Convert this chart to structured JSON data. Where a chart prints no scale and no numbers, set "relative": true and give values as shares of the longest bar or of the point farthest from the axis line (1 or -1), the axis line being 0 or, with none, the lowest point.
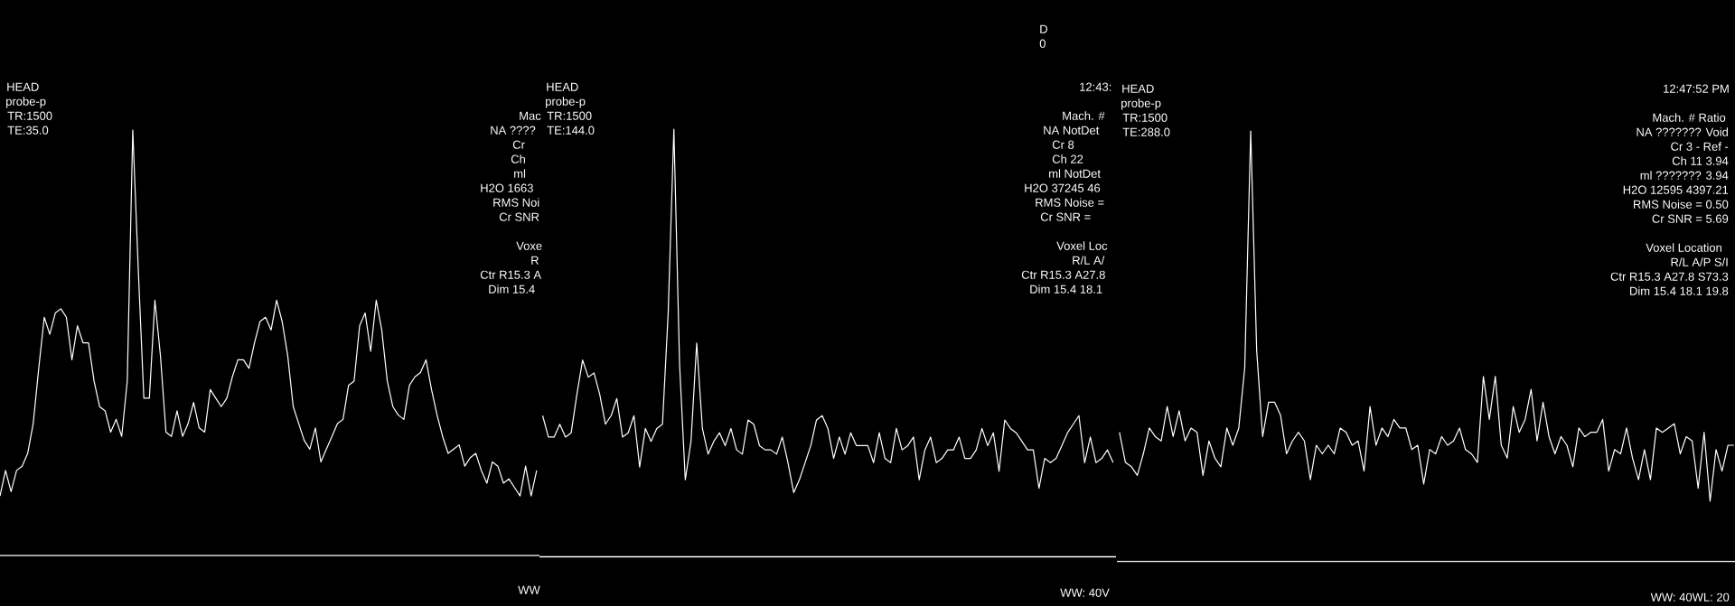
{
  "chart_data": [
    {
      "type": "line",
      "relative": true,
      "categories": [
        null,
        null,
        null,
        null,
        null,
        null,
        null,
        null,
        null,
        null,
        null,
        null,
        null,
        null,
        null,
        null,
        null,
        null,
        null,
        null,
        null,
        null,
        null,
        null,
        null,
        null,
        null,
        null,
        null,
        null,
        null,
        null,
        null,
        null,
        null,
        null,
        null,
        null,
        null,
        null,
        null,
        null,
        null,
        null,
        null,
        null,
        null,
        null,
        null,
        null,
        null,
        null,
        null,
        null,
        null,
        null,
        null,
        null,
        null,
        null,
        null,
        null,
        null,
        null,
        null,
        null,
        null,
        null,
        null,
        null,
        null,
        null,
        null,
        null,
        null,
        null,
        null,
        null,
        null,
        null,
        null,
        null,
        null,
        null,
        null,
        null,
        null,
        null,
        null,
        null,
        null,
        null,
        null,
        null,
        null,
        null,
        null,
        null
      ],
      "series": [
        {
          "color": "#ffffff",
          "values": [
            0.14,
            0.2,
            0.15,
            0.2,
            0.21,
            0.24,
            0.31,
            0.44,
            0.56,
            0.52,
            0.57,
            0.58,
            0.56,
            0.46,
            0.54,
            0.5,
            0.5,
            0.41,
            0.35,
            0.34,
            0.29,
            0.32,
            0.28,
            0.41,
            1.0,
            0.67,
            0.37,
            0.37,
            0.6,
            0.47,
            0.29,
            0.28,
            0.34,
            0.28,
            0.31,
            0.36,
            0.3,
            0.29,
            0.39,
            0.37,
            0.35,
            0.37,
            0.42,
            0.46,
            0.46,
            0.44,
            0.5,
            0.55,
            0.56,
            0.53,
            0.6,
            0.55,
            0.47,
            0.35,
            0.31,
            0.27,
            0.25,
            0.3,
            0.22,
            0.25,
            0.28,
            0.31,
            0.32,
            0.4,
            0.41,
            0.54,
            0.57,
            0.48,
            0.6,
            0.53,
            0.41,
            0.35,
            0.33,
            0.32,
            0.4,
            0.42,
            0.43,
            0.46,
            0.39,
            0.33,
            0.28,
            0.24,
            0.25,
            0.26,
            0.21,
            0.23,
            0.24,
            0.2,
            0.17,
            0.22,
            0.21,
            0.17,
            0.18,
            0.16,
            0.14,
            0.21,
            0.14,
            0.2
          ]
        }
      ],
      "annotations": [
        "HEAD",
        "probe-p",
        "TR:1500",
        "TE:35.0",
        "Mac",
        "NA ????",
        "Cr",
        "Ch",
        "ml",
        "H2O 1663",
        "RMS Noi",
        "Cr SNR",
        "Voxe",
        "R",
        "Ctr R15.3 A",
        "Dim 15.4",
        "WW"
      ]
    },
    {
      "type": "line",
      "relative": true,
      "categories": [
        null,
        null,
        null,
        null,
        null,
        null,
        null,
        null,
        null,
        null,
        null,
        null,
        null,
        null,
        null,
        null,
        null,
        null,
        null,
        null,
        null,
        null,
        null,
        null,
        null,
        null,
        null,
        null,
        null,
        null,
        null,
        null,
        null,
        null,
        null,
        null,
        null,
        null,
        null,
        null,
        null,
        null,
        null,
        null,
        null,
        null,
        null,
        null,
        null,
        null,
        null,
        null,
        null,
        null,
        null,
        null,
        null,
        null,
        null,
        null,
        null,
        null,
        null,
        null,
        null,
        null,
        null,
        null,
        null,
        null,
        null,
        null,
        null,
        null,
        null,
        null,
        null,
        null,
        null,
        null,
        null,
        null,
        null,
        null,
        null,
        null,
        null,
        null,
        null,
        null,
        null,
        null,
        null,
        null,
        null,
        null,
        null,
        null,
        null,
        null,
        null
      ],
      "series": [
        {
          "color": "#ffffff",
          "values": [
            0.33,
            0.28,
            0.28,
            0.31,
            0.28,
            0.29,
            0.38,
            0.46,
            0.42,
            0.43,
            0.38,
            0.31,
            0.33,
            0.37,
            0.28,
            0.29,
            0.33,
            0.21,
            0.3,
            0.27,
            0.3,
            0.31,
            0.57,
            1.0,
            0.45,
            0.18,
            0.27,
            0.5,
            0.3,
            0.24,
            0.27,
            0.29,
            0.26,
            0.3,
            0.25,
            0.24,
            0.32,
            0.31,
            0.26,
            0.25,
            0.25,
            0.24,
            0.28,
            0.22,
            0.15,
            0.18,
            0.22,
            0.26,
            0.32,
            0.33,
            0.3,
            0.23,
            0.28,
            0.24,
            0.29,
            0.26,
            0.26,
            0.26,
            0.22,
            0.29,
            0.23,
            0.22,
            0.3,
            0.25,
            0.26,
            0.28,
            0.18,
            0.25,
            0.28,
            0.22,
            0.23,
            0.25,
            0.25,
            0.28,
            0.23,
            0.23,
            0.25,
            0.3,
            0.26,
            0.29,
            0.2,
            0.32,
            0.3,
            0.29,
            0.27,
            0.25,
            0.25,
            0.16,
            0.23,
            0.22,
            0.23,
            0.26,
            0.29,
            0.31,
            0.33,
            0.22,
            0.28,
            0.22,
            0.23,
            0.25,
            0.22
          ]
        }
      ],
      "annotations": [
        "HEAD",
        "probe-p",
        "TR:1500",
        "TE:144.0",
        "D",
        "0",
        "12:43:",
        "Mach. #",
        "NA NotDet",
        "Cr 8",
        "Ch 22",
        "ml NotDet",
        "H2O 37245 46",
        "RMS Noise =",
        "Cr SNR =",
        "Voxel Loc",
        "R/L A/",
        "Ctr R15.3 A27.8",
        "Dim 15.4 18.1",
        "WW: 40V"
      ]
    },
    {
      "type": "line",
      "relative": true,
      "categories": [
        null,
        null,
        null,
        null,
        null,
        null,
        null,
        null,
        null,
        null,
        null,
        null,
        null,
        null,
        null,
        null,
        null,
        null,
        null,
        null,
        null,
        null,
        null,
        null,
        null,
        null,
        null,
        null,
        null,
        null,
        null,
        null,
        null,
        null,
        null,
        null,
        null,
        null,
        null,
        null,
        null,
        null,
        null,
        null,
        null,
        null,
        null,
        null,
        null,
        null,
        null,
        null,
        null,
        null,
        null,
        null,
        null,
        null,
        null,
        null,
        null,
        null,
        null,
        null,
        null,
        null,
        null,
        null,
        null,
        null,
        null,
        null,
        null,
        null,
        null,
        null,
        null,
        null,
        null,
        null,
        null,
        null,
        null,
        null,
        null,
        null,
        null,
        null,
        null,
        null,
        null,
        null,
        null,
        null,
        null,
        null,
        null,
        null,
        null,
        null,
        null,
        null,
        null,
        null
      ],
      "series": [
        {
          "color": "#ffffff",
          "values": [
            0.3,
            0.23,
            0.22,
            0.2,
            0.25,
            0.31,
            0.29,
            0.28,
            0.36,
            0.29,
            0.35,
            0.28,
            0.31,
            0.3,
            0.2,
            0.28,
            0.24,
            0.22,
            0.31,
            0.27,
            0.31,
            0.45,
            1.0,
            0.49,
            0.29,
            0.37,
            0.37,
            0.34,
            0.25,
            0.28,
            0.3,
            0.28,
            0.19,
            0.27,
            0.25,
            0.27,
            0.25,
            0.31,
            0.3,
            0.27,
            0.28,
            0.21,
            0.36,
            0.27,
            0.31,
            0.29,
            0.33,
            0.31,
            0.31,
            0.26,
            0.27,
            0.18,
            0.26,
            0.25,
            0.29,
            0.27,
            0.28,
            0.31,
            0.26,
            0.25,
            0.23,
            0.43,
            0.33,
            0.43,
            0.27,
            0.24,
            0.36,
            0.3,
            0.33,
            0.4,
            0.28,
            0.37,
            0.29,
            0.25,
            0.29,
            0.27,
            0.22,
            0.31,
            0.29,
            0.3,
            0.3,
            0.33,
            0.21,
            0.26,
            0.25,
            0.31,
            0.24,
            0.19,
            0.26,
            0.19,
            0.31,
            0.3,
            0.31,
            0.32,
            0.25,
            0.29,
            0.28,
            0.17,
            0.3,
            0.14,
            0.26,
            0.21,
            0.27,
            0.27
          ]
        }
      ],
      "annotations": [
        "HEAD",
        "probe-p",
        "TR:1500",
        "TE:288.0",
        "12:47:52 PM",
        "Mach. # Ratio",
        "NA ??????? Void",
        "Cr 3 - Ref -",
        "Ch 11 3.94",
        "ml ??????? 3.94",
        "H2O 12595 4397.21",
        "RMS Noise = 0.50",
        "Cr SNR = 5.69",
        "Voxel Location",
        "R/L A/P S/I",
        "Ctr R15.3 A27.8 S73.3",
        "Dim 15.4 18.1 19.8",
        "WW: 40WL: 20"
      ]
    }
  ]
}
